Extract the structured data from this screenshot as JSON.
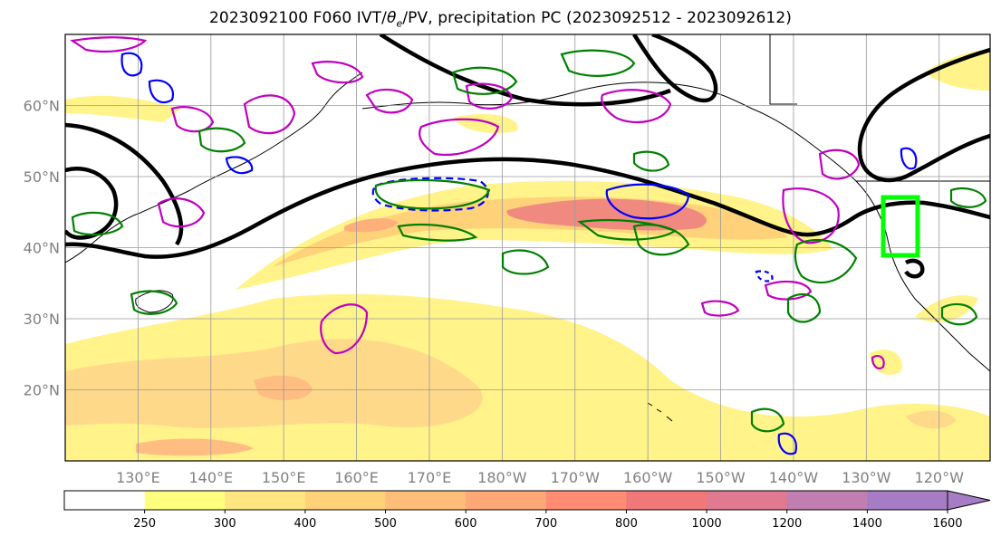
{
  "title": {
    "prefix": "2023092100 F060 IVT/",
    "theta": "θ",
    "theta_sub": "e",
    "suffix": "/PV, precipitation PC (2023092512 - 2023092612)"
  },
  "axes": {
    "lat_labels": [
      "60°N",
      "50°N",
      "40°N",
      "30°N",
      "20°N"
    ],
    "lat_values": [
      60,
      50,
      40,
      30,
      20
    ],
    "lon_labels": [
      "130°E",
      "140°E",
      "150°E",
      "160°E",
      "170°E",
      "180°W",
      "170°W",
      "160°W",
      "150°W",
      "140°W",
      "130°W",
      "120°W"
    ],
    "lon_values": [
      130,
      140,
      150,
      160,
      170,
      180,
      190,
      200,
      210,
      220,
      230,
      240
    ],
    "lon_range": [
      120,
      247
    ],
    "lat_range": [
      10,
      70
    ],
    "grid": true
  },
  "colorbar": {
    "labels": [
      "250",
      "300",
      "400",
      "500",
      "600",
      "700",
      "800",
      "1000",
      "1200",
      "1400",
      "1600"
    ],
    "colors": [
      "#ffffff",
      "#ffff80",
      "#ffe680",
      "#ffd27a",
      "#ffbd7a",
      "#ffa877",
      "#ff8c73",
      "#f07878",
      "#e07a90",
      "#c07fb0",
      "#a67cc4"
    ],
    "extend": "max"
  },
  "overlays": {
    "ivt_fill": "#ffd27a",
    "theta_e_contour": "#000000",
    "pv_contour_positive": "#c000c0",
    "pv_contour_negative": "#0000ff",
    "precip_contour": "#008000",
    "target_box": "#00ff00"
  }
}
